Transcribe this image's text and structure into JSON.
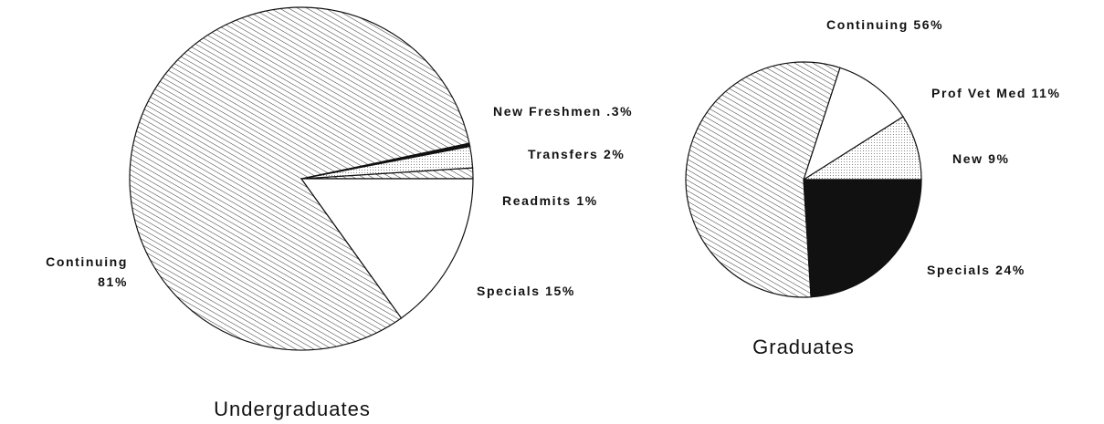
{
  "chart_data": [
    {
      "type": "pie",
      "title": "Undergraduates",
      "categories": [
        "Readmits",
        "Transfers",
        "New Freshmen",
        "Continuing",
        "Specials"
      ],
      "values": [
        1,
        2,
        0.3,
        81,
        15
      ],
      "value_labels": [
        "1%",
        "2%",
        ".3%",
        "81%",
        "15%"
      ],
      "fills": [
        "hatch",
        "dots",
        "black",
        "hatch",
        "white"
      ]
    },
    {
      "type": "pie",
      "title": "Graduates",
      "categories": [
        "New",
        "Prof Vet Med",
        "Continuing",
        "Specials"
      ],
      "values": [
        9,
        11,
        56,
        24
      ],
      "value_labels": [
        "9%",
        "11%",
        "56%",
        "24%"
      ],
      "fills": [
        "dots",
        "white",
        "hatch",
        "black"
      ]
    }
  ]
}
